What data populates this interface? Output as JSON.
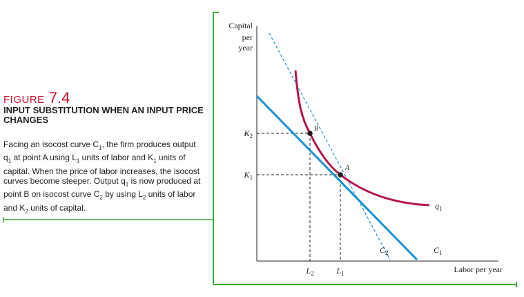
{
  "figure": {
    "label_word": "Figure",
    "label_number": "7.4",
    "title": "Input Substitution When an Input Price Changes",
    "caption": [
      {
        "t": "Facing an isocost curve C"
      },
      {
        "sub": "1"
      },
      {
        "t": ", the firm produces output q"
      },
      {
        "sub": "1"
      },
      {
        "t": " at point A using L"
      },
      {
        "sub": "1"
      },
      {
        "t": " units of labor and K"
      },
      {
        "sub": "1"
      },
      {
        "t": " units of capital. When the price of labor increases, the isocost curves become steeper. Output q"
      },
      {
        "sub": "1"
      },
      {
        "t": " is now produced at point B on isocost curve C"
      },
      {
        "sub": "2"
      },
      {
        "t": " by using L"
      },
      {
        "sub": "2"
      },
      {
        "t": " units of labor and K"
      },
      {
        "sub": "2"
      },
      {
        "t": " units of capital."
      }
    ]
  },
  "colors": {
    "accent_green": "#3aa935",
    "isoquant": "#b5134b",
    "isocost": "#1591d1",
    "title_red": "#c8102e"
  },
  "chart_data": {
    "type": "line",
    "ylabel": [
      "Capital",
      "per",
      "year"
    ],
    "xlabel": "Labor per year",
    "y_ticks": [
      {
        "label": "K",
        "sub": "2"
      },
      {
        "label": "K",
        "sub": "1"
      }
    ],
    "x_ticks": [
      {
        "label": "L",
        "sub": "2"
      },
      {
        "label": "L",
        "sub": "1"
      }
    ],
    "points": [
      {
        "name": "B",
        "on": [
          "isoquant",
          "C2"
        ],
        "at": [
          "L2",
          "K2"
        ]
      },
      {
        "name": "A",
        "on": [
          "isoquant",
          "C1"
        ],
        "at": [
          "L1",
          "K1"
        ]
      }
    ],
    "curves": [
      {
        "name": "q",
        "sub": "1",
        "kind": "isoquant",
        "style": "solid"
      },
      {
        "name": "C",
        "sub": "1",
        "kind": "isocost",
        "style": "solid",
        "tangent_at": "A"
      },
      {
        "name": "C",
        "sub": "2",
        "kind": "isocost",
        "style": "dashed",
        "tangent_at": "B"
      }
    ]
  }
}
